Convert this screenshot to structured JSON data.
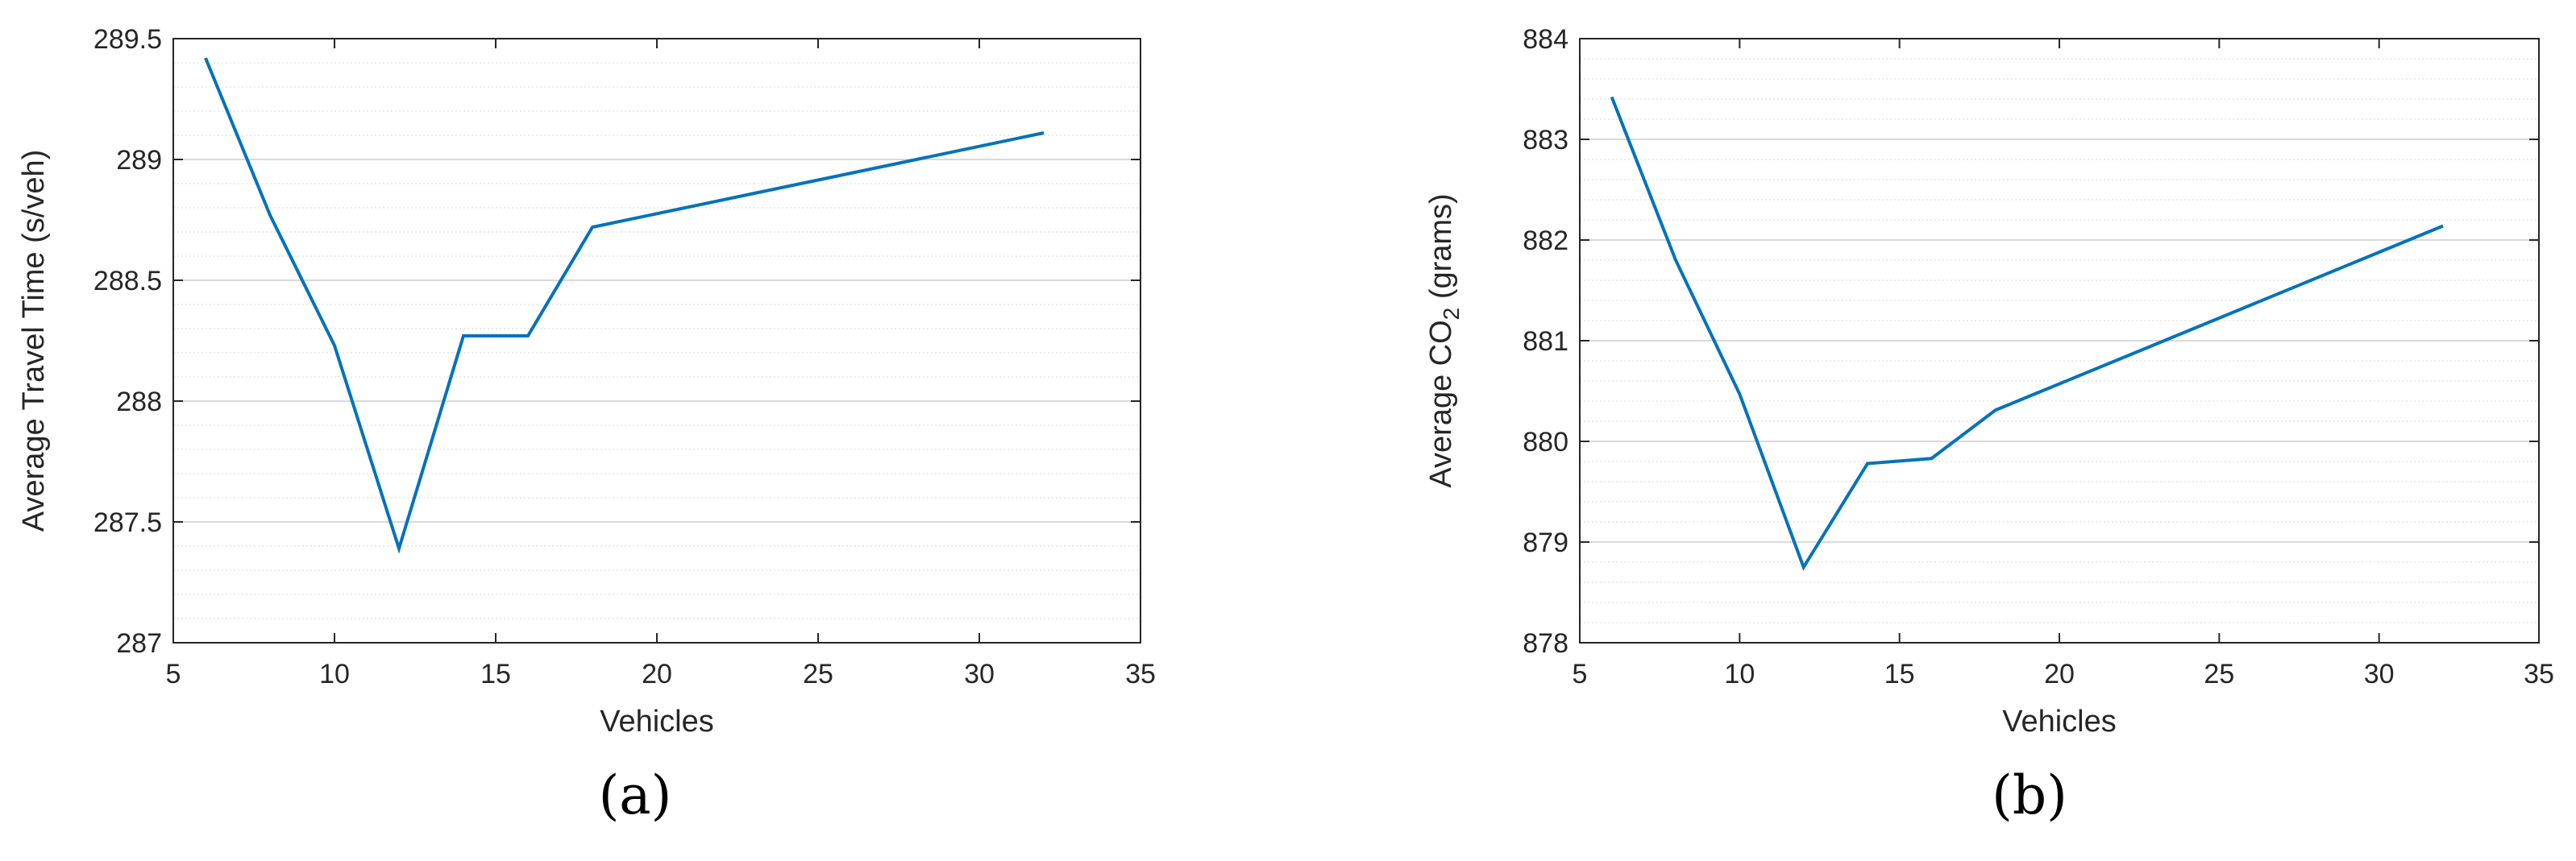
{
  "colors": {
    "line": "#0072BD",
    "axis": "#262626",
    "grid_major": "#d9d9d9",
    "grid_minor": "#e6e6e6"
  },
  "chart_data": [
    {
      "type": "line",
      "panel_label": "(a)",
      "xlabel": "Vehicles",
      "ylabel": "Average Travel Time (s/veh)",
      "xlim": [
        5,
        35
      ],
      "ylim": [
        287,
        289.5
      ],
      "x_ticks": [
        5,
        10,
        15,
        20,
        25,
        30,
        35
      ],
      "x_tick_labels": [
        "5",
        "10",
        "15",
        "20",
        "25",
        "30",
        "35"
      ],
      "y_ticks": [
        287,
        287.5,
        288,
        288.5,
        289,
        289.5
      ],
      "y_tick_labels": [
        "287",
        "287.5",
        "288",
        "288.5",
        "289",
        "289.5"
      ],
      "y_minor_step": 0.1,
      "grid": "y-major-and-minor",
      "series": [
        {
          "x": [
            6,
            8,
            10,
            12,
            14,
            16,
            18,
            32
          ],
          "y": [
            289.42,
            288.77,
            288.23,
            287.39,
            288.27,
            288.27,
            288.72,
            289.11
          ]
        }
      ]
    },
    {
      "type": "line",
      "panel_label": "(b)",
      "xlabel": "Vehicles",
      "ylabel": "Average CO",
      "ylabel_subscript": "2",
      "ylabel_suffix": " (grams)",
      "xlim": [
        5,
        35
      ],
      "ylim": [
        878,
        884
      ],
      "x_ticks": [
        5,
        10,
        15,
        20,
        25,
        30,
        35
      ],
      "x_tick_labels": [
        "5",
        "10",
        "15",
        "20",
        "25",
        "30",
        "35"
      ],
      "y_ticks": [
        878,
        879,
        880,
        881,
        882,
        883,
        884
      ],
      "y_tick_labels": [
        "878",
        "879",
        "880",
        "881",
        "882",
        "883",
        "884"
      ],
      "y_minor_step": 0.2,
      "grid": "y-major-and-minor",
      "series": [
        {
          "x": [
            6,
            8,
            10,
            12,
            14,
            16,
            18,
            32
          ],
          "y": [
            883.42,
            881.8,
            880.47,
            878.75,
            879.78,
            879.83,
            880.31,
            882.14
          ]
        }
      ]
    }
  ]
}
